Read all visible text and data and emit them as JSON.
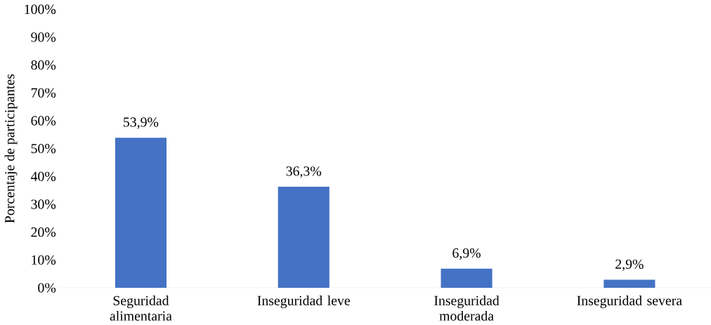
{
  "chart_data": {
    "type": "bar",
    "ylabel": "Porcentaje de participantes",
    "categories": [
      "Seguridad alimentaria",
      "Inseguridad leve",
      "Inseguridad moderada",
      "Inseguridad severa"
    ],
    "values": [
      53.9,
      36.3,
      6.9,
      2.9
    ],
    "color": "#4472c4",
    "value_labels": [
      "53,9%",
      "36,3%",
      "6,9%",
      "2,9%"
    ],
    "ylim": [
      0,
      100
    ],
    "yticks": [
      {
        "value": 0,
        "label": "0%"
      },
      {
        "value": 10,
        "label": "10%"
      },
      {
        "value": 20,
        "label": "20%"
      },
      {
        "value": 30,
        "label": "30%"
      },
      {
        "value": 40,
        "label": "40%"
      },
      {
        "value": 50,
        "label": "50%"
      },
      {
        "value": 60,
        "label": "60%"
      },
      {
        "value": 70,
        "label": "70%"
      },
      {
        "value": 80,
        "label": "80%"
      },
      {
        "value": 90,
        "label": "90%"
      },
      {
        "value": 100,
        "label": "100%"
      }
    ],
    "data_labels": false
  }
}
